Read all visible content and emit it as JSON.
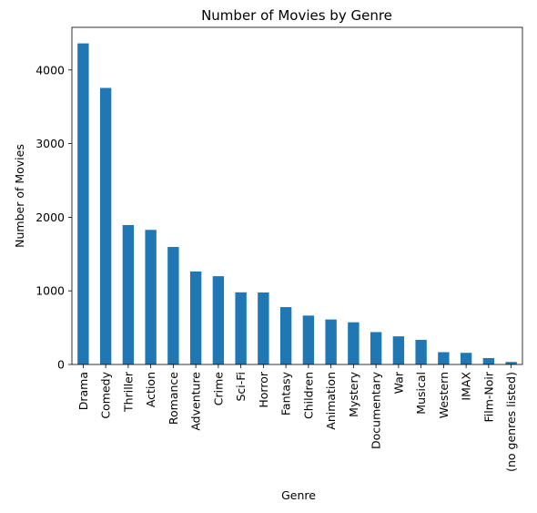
{
  "chart_data": {
    "type": "bar",
    "title": "Number of Movies by Genre",
    "xlabel": "Genre",
    "ylabel": "Number of Movies",
    "categories": [
      "Drama",
      "Comedy",
      "Thriller",
      "Action",
      "Romance",
      "Adventure",
      "Crime",
      "Sci-Fi",
      "Horror",
      "Fantasy",
      "Children",
      "Animation",
      "Mystery",
      "Documentary",
      "War",
      "Musical",
      "Western",
      "IMAX",
      "Film-Noir",
      "(no genres listed)"
    ],
    "values": [
      4361,
      3756,
      1894,
      1828,
      1596,
      1263,
      1199,
      980,
      978,
      779,
      664,
      611,
      573,
      440,
      382,
      334,
      167,
      158,
      87,
      34
    ],
    "yticks": [
      0,
      1000,
      2000,
      3000,
      4000
    ],
    "ytick_labels": [
      "0",
      "1000",
      "2000",
      "3000",
      "4000"
    ],
    "ylim": [
      0,
      4579
    ],
    "grid": false,
    "bar_color": "#1f77b4"
  }
}
